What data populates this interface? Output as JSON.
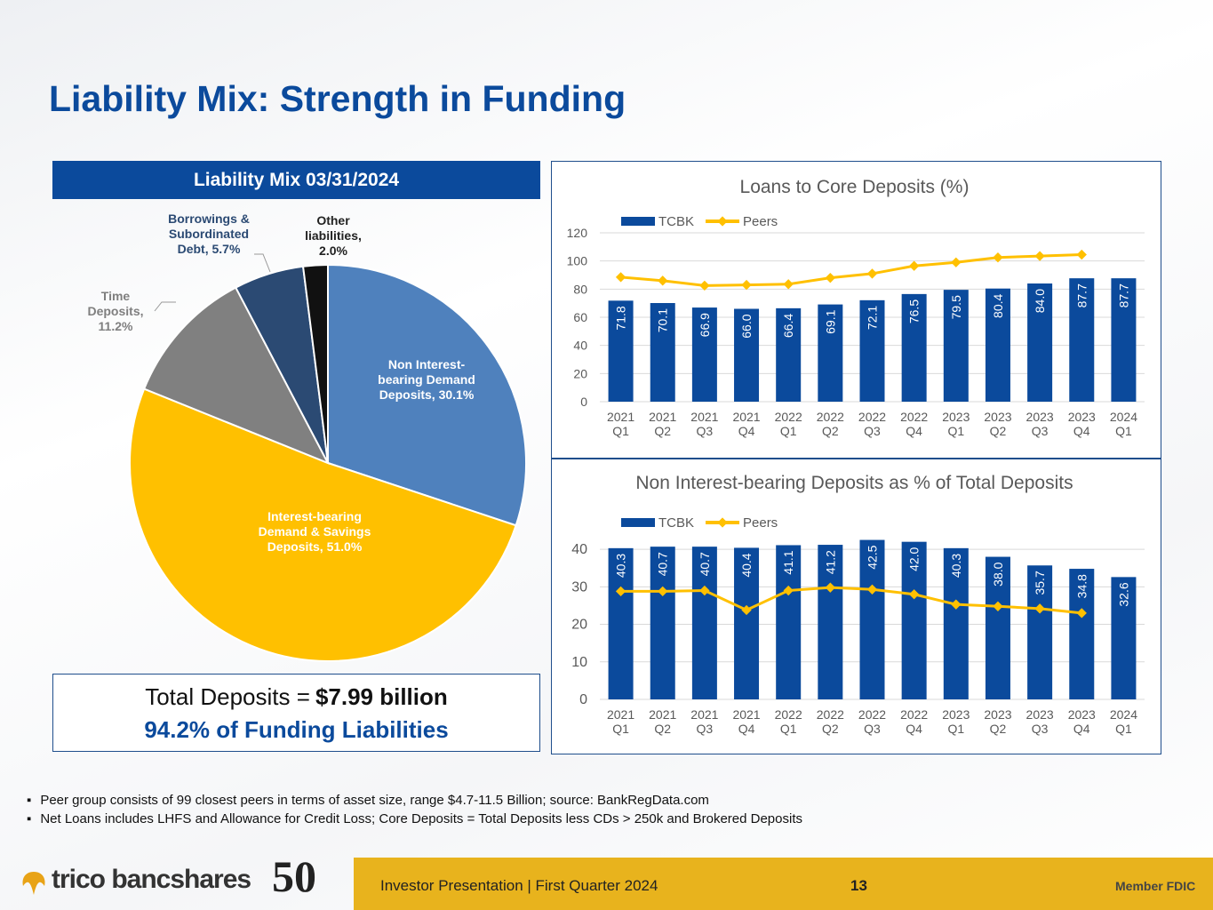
{
  "header": {
    "title": "Liability Mix: Strength in Funding"
  },
  "chart_data": [
    {
      "type": "pie",
      "title": "Liability Mix 03/31/2024",
      "categories": [
        "Non Interest-bearing Demand Deposits, 30.1%",
        "Interest-bearing Demand & Savings Deposits, 51.0%",
        "Time Deposits, 11.2%",
        "Borrowings & Subordinated Debt, 5.7%",
        "Other liabilities, 2.0%"
      ],
      "values": [
        30.1,
        51.0,
        11.2,
        5.7,
        2.0
      ],
      "colors": [
        "#4f81bd",
        "#ffc000",
        "#808080",
        "#2b4a73",
        "#111111"
      ]
    },
    {
      "type": "bar_line",
      "title": "Loans to Core Deposits (%)",
      "categories": [
        "2021 Q1",
        "2021 Q2",
        "2021 Q3",
        "2021 Q4",
        "2022 Q1",
        "2022 Q2",
        "2022 Q3",
        "2022 Q4",
        "2023 Q1",
        "2023 Q2",
        "2023 Q3",
        "2023 Q4",
        "2024 Q1"
      ],
      "series": [
        {
          "name": "TCBK",
          "type": "bar",
          "color": "#0b4a9c",
          "values": [
            71.8,
            70.1,
            66.9,
            66.0,
            66.4,
            69.1,
            72.1,
            76.5,
            79.5,
            80.4,
            84.0,
            87.7,
            87.7
          ],
          "value_labels": [
            "71.8",
            "70.1",
            "66.9",
            "66.0",
            "66.4",
            "69.1",
            "72.1",
            "76.5",
            "79.5",
            "80.4",
            "84.0",
            "87.7",
            "87.7"
          ]
        },
        {
          "name": "Peers",
          "type": "line",
          "color": "#ffc000",
          "values": [
            88.5,
            86.0,
            82.5,
            83.0,
            83.5,
            88.0,
            91.0,
            96.5,
            99.0,
            102.5,
            103.5,
            104.5,
            null
          ]
        }
      ],
      "ylim": [
        0,
        120
      ],
      "yticks": [
        0,
        20,
        40,
        60,
        80,
        100,
        120
      ],
      "grid": true,
      "legend": "top-left"
    },
    {
      "type": "bar_line",
      "title": "Non Interest-bearing Deposits as % of Total Deposits",
      "categories": [
        "2021 Q1",
        "2021 Q2",
        "2021 Q3",
        "2021 Q4",
        "2022 Q1",
        "2022 Q2",
        "2022 Q3",
        "2022 Q4",
        "2023 Q1",
        "2023 Q2",
        "2023 Q3",
        "2023 Q4",
        "2024 Q1"
      ],
      "series": [
        {
          "name": "TCBK",
          "type": "bar",
          "color": "#0b4a9c",
          "values": [
            40.3,
            40.7,
            40.7,
            40.4,
            41.1,
            41.2,
            42.5,
            42.0,
            40.3,
            38.0,
            35.7,
            34.8,
            32.6
          ],
          "value_labels": [
            "40.3",
            "40.7",
            "40.7",
            "40.4",
            "41.1",
            "41.2",
            "42.5",
            "42.0",
            "40.3",
            "38.0",
            "35.7",
            "34.8",
            "32.6"
          ]
        },
        {
          "name": "Peers",
          "type": "line",
          "color": "#ffc000",
          "values": [
            28.8,
            28.8,
            29.0,
            23.8,
            29.0,
            29.8,
            29.3,
            28.0,
            25.3,
            24.8,
            24.2,
            23.0,
            null
          ]
        }
      ],
      "ylim": [
        0,
        45
      ],
      "yticks": [
        0,
        10,
        20,
        30,
        40
      ],
      "grid": true,
      "legend": "top-left"
    }
  ],
  "summary": {
    "prefix": "Total Deposits =",
    "amount": "$7.99 billion",
    "share": "94.2% of Funding Liabilities"
  },
  "footnotes": [
    "Peer group consists of 99 closest peers in terms of asset size, range $4.7-11.5 Billion; source: BankRegData.com",
    "Net Loans includes LHFS and Allowance for Credit Loss; Core Deposits = Total Deposits less CDs > 250k and Brokered Deposits"
  ],
  "footer": {
    "brand": "trico bancshares",
    "anniversary": "50",
    "presentation": "Investor Presentation  |  First Quarter 2024",
    "page": "13",
    "member": "Member FDIC"
  }
}
